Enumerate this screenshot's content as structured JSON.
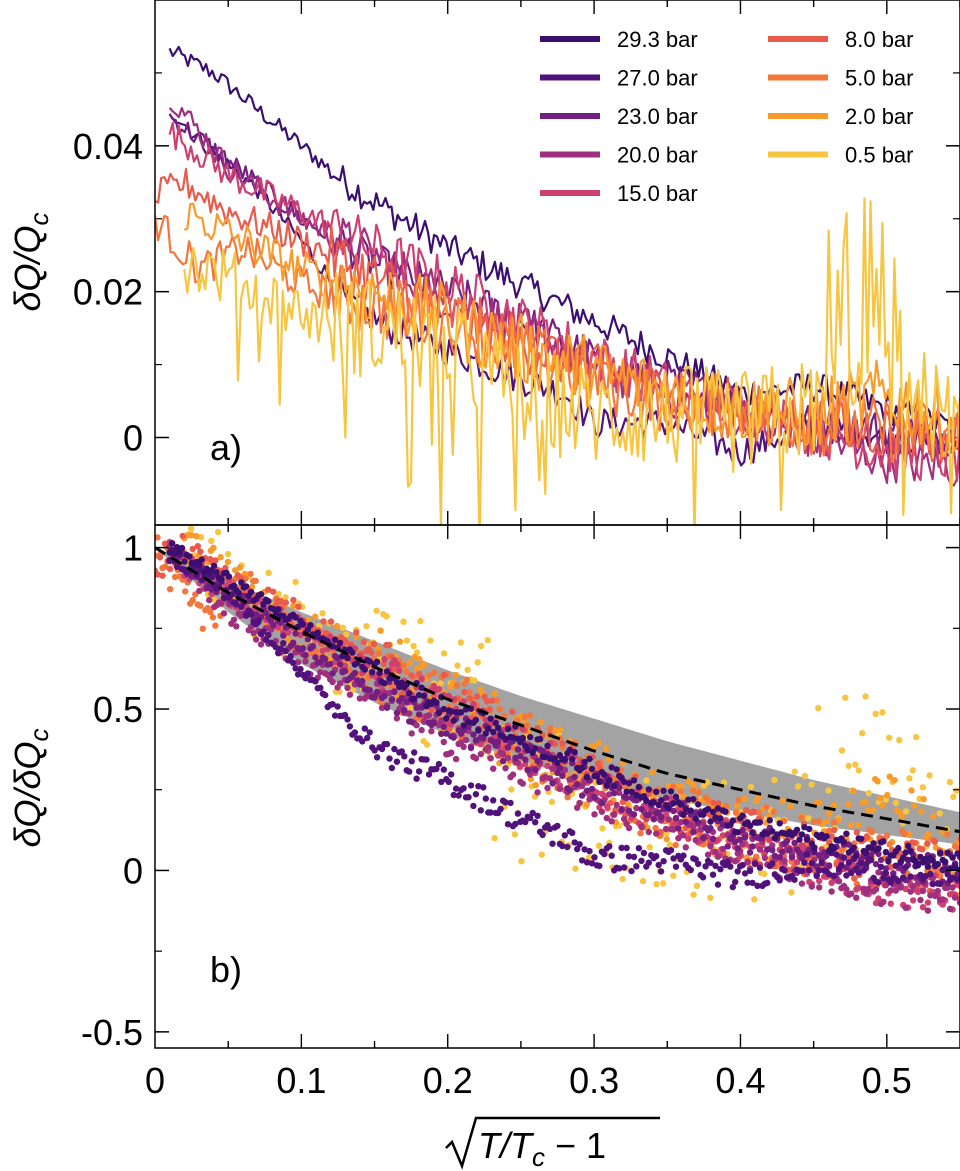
{
  "chart_data": [
    {
      "panel": "a)",
      "type": "line",
      "ylabel_parts": {
        "base": "δQ/Q",
        "sub": "c"
      },
      "xlim": [
        0,
        0.55
      ],
      "ylim": [
        -0.012,
        0.06
      ],
      "yticks": [
        0,
        0.02,
        0.04
      ],
      "ytick_labels": [
        "0",
        "0.02",
        "0.04"
      ],
      "legend_position": "top-right",
      "series": [
        {
          "name": "29.3 bar",
          "color": "#3b0f70",
          "x": [
            0.01,
            0.04,
            0.07,
            0.1,
            0.13,
            0.16,
            0.2,
            0.25,
            0.3,
            0.35,
            0.4,
            0.45,
            0.5,
            0.55
          ],
          "y": [
            0.053,
            0.05,
            0.045,
            0.04,
            0.035,
            0.031,
            0.026,
            0.021,
            0.016,
            0.011,
            0.006,
            0.007,
            0.004,
            0.001
          ],
          "noise": 0.0012
        },
        {
          "name": "27.0 bar",
          "color": "#51127c",
          "x": [
            0.01,
            0.04,
            0.07,
            0.1,
            0.13,
            0.16,
            0.2,
            0.25,
            0.28,
            0.3,
            0.35,
            0.4,
            0.45,
            0.5,
            0.55
          ],
          "y": [
            0.045,
            0.039,
            0.034,
            0.027,
            0.019,
            0.015,
            0.012,
            0.008,
            0.006,
            0.002,
            0.002,
            -0.002,
            0.002,
            0.0,
            -0.001
          ],
          "noise": 0.0012
        },
        {
          "name": "23.0 bar",
          "color": "#721f81",
          "x": [
            0.01,
            0.05,
            0.1,
            0.15,
            0.2,
            0.25,
            0.3,
            0.35,
            0.4,
            0.45,
            0.5,
            0.55
          ],
          "y": [
            0.044,
            0.038,
            0.03,
            0.024,
            0.02,
            0.016,
            0.011,
            0.008,
            0.005,
            0.002,
            0.001,
            0.0
          ],
          "noise": 0.0015
        },
        {
          "name": "20.0 bar",
          "color": "#9f2f7f",
          "x": [
            0.01,
            0.05,
            0.1,
            0.15,
            0.2,
            0.25,
            0.3,
            0.35,
            0.4,
            0.45,
            0.5,
            0.55
          ],
          "y": [
            0.047,
            0.037,
            0.03,
            0.025,
            0.019,
            0.015,
            0.01,
            0.006,
            0.003,
            0.0,
            -0.003,
            -0.004
          ],
          "noise": 0.0018
        },
        {
          "name": "15.0 bar",
          "color": "#cd4071",
          "x": [
            0.01,
            0.05,
            0.1,
            0.15,
            0.2,
            0.25,
            0.3,
            0.35,
            0.4,
            0.45,
            0.5,
            0.55
          ],
          "y": [
            0.042,
            0.036,
            0.031,
            0.026,
            0.021,
            0.016,
            0.011,
            0.007,
            0.004,
            0.001,
            -0.002,
            -0.003
          ],
          "noise": 0.002
        },
        {
          "name": "8.0 bar",
          "color": "#e85b4d",
          "x": [
            0.0,
            0.02,
            0.05,
            0.1,
            0.15,
            0.2,
            0.25,
            0.3,
            0.35,
            0.4,
            0.45,
            0.5,
            0.55
          ],
          "y": [
            0.033,
            0.035,
            0.031,
            0.027,
            0.022,
            0.017,
            0.013,
            0.009,
            0.006,
            0.004,
            0.002,
            0.001,
            0.0
          ],
          "noise": 0.0022
        },
        {
          "name": "5.0 bar",
          "color": "#f3763c",
          "x": [
            0.0,
            0.03,
            0.06,
            0.1,
            0.15,
            0.2,
            0.25,
            0.3,
            0.35,
            0.4,
            0.45,
            0.5,
            0.55
          ],
          "y": [
            0.03,
            0.023,
            0.026,
            0.021,
            0.018,
            0.016,
            0.012,
            0.008,
            0.005,
            0.004,
            0.002,
            0.001,
            0.001
          ],
          "noise": 0.0025
        },
        {
          "name": "2.0 bar",
          "color": "#f89b2a",
          "x": [
            0.02,
            0.05,
            0.1,
            0.15,
            0.2,
            0.25,
            0.3,
            0.35,
            0.4,
            0.45,
            0.5,
            0.55
          ],
          "y": [
            0.031,
            0.028,
            0.023,
            0.02,
            0.016,
            0.012,
            0.009,
            0.006,
            0.004,
            0.003,
            0.006,
            0.001
          ],
          "noise": 0.0028
        },
        {
          "name": "0.5 bar",
          "color": "#f6c643",
          "x": [
            0.02,
            0.05,
            0.1,
            0.15,
            0.2,
            0.25,
            0.3,
            0.35,
            0.4,
            0.45,
            0.48,
            0.5,
            0.55
          ],
          "y": [
            0.024,
            0.022,
            0.017,
            0.015,
            0.012,
            0.006,
            0.003,
            0.003,
            0.002,
            0.004,
            0.011,
            0.008,
            0.002
          ],
          "noise": 0.004
        }
      ]
    },
    {
      "panel": "b)",
      "type": "scatter",
      "ylabel_parts": {
        "base": "δQ/δQ",
        "sub": "c"
      },
      "xlabel": "√(T/Tc − 1)",
      "xlabel_parts": {
        "base": "T/T",
        "sub": "c",
        "tail": " − 1"
      },
      "xlim": [
        0,
        0.55
      ],
      "ylim": [
        -0.55,
        1.07
      ],
      "xticks": [
        0,
        0.1,
        0.2,
        0.3,
        0.4,
        0.5
      ],
      "xtick_labels": [
        "0",
        "0.1",
        "0.2",
        "0.3",
        "0.4",
        "0.5"
      ],
      "yticks": [
        -0.5,
        0,
        0.5,
        1
      ],
      "ytick_labels": [
        "-0.5",
        "0",
        "0.5",
        "1"
      ],
      "fit_curve": {
        "style": "dashed",
        "color": "#000000",
        "x": [
          0,
          0.05,
          0.1,
          0.15,
          0.2,
          0.25,
          0.3,
          0.35,
          0.4,
          0.45,
          0.5,
          0.55
        ],
        "y": [
          1.0,
          0.86,
          0.74,
          0.63,
          0.53,
          0.45,
          0.37,
          0.3,
          0.25,
          0.2,
          0.16,
          0.12
        ]
      },
      "confidence_band": {
        "color": "#9e9e9e",
        "x": [
          0,
          0.05,
          0.1,
          0.15,
          0.2,
          0.25,
          0.3,
          0.35,
          0.4,
          0.45,
          0.5,
          0.55
        ],
        "upper": [
          1.0,
          0.9,
          0.8,
          0.71,
          0.62,
          0.54,
          0.47,
          0.4,
          0.34,
          0.28,
          0.23,
          0.18
        ],
        "lower": [
          1.0,
          0.8,
          0.64,
          0.52,
          0.42,
          0.34,
          0.27,
          0.22,
          0.18,
          0.14,
          0.11,
          0.08
        ]
      },
      "series": [
        {
          "name": "29.3 bar",
          "color": "#3b0f70",
          "x": [
            0.01,
            0.05,
            0.1,
            0.15,
            0.2,
            0.25,
            0.3,
            0.35,
            0.4,
            0.45,
            0.5,
            0.55
          ],
          "y": [
            1.0,
            0.9,
            0.76,
            0.62,
            0.5,
            0.41,
            0.31,
            0.22,
            0.14,
            0.1,
            0.06,
            0.03
          ],
          "noise": 0.02
        },
        {
          "name": "27.0 bar",
          "color": "#51127c",
          "x": [
            0.01,
            0.05,
            0.1,
            0.13,
            0.16,
            0.2,
            0.25,
            0.28,
            0.3,
            0.35,
            0.4,
            0.45,
            0.5,
            0.55
          ],
          "y": [
            0.98,
            0.86,
            0.62,
            0.46,
            0.36,
            0.28,
            0.16,
            0.1,
            0.04,
            0.03,
            -0.02,
            0.02,
            0.0,
            -0.02
          ],
          "noise": 0.025
        },
        {
          "name": "23.0 bar",
          "color": "#721f81",
          "x": [
            0.01,
            0.05,
            0.1,
            0.15,
            0.2,
            0.25,
            0.3,
            0.35,
            0.4,
            0.45,
            0.5,
            0.55
          ],
          "y": [
            0.98,
            0.86,
            0.7,
            0.56,
            0.45,
            0.36,
            0.26,
            0.18,
            0.11,
            0.05,
            0.02,
            0.0
          ],
          "noise": 0.03
        },
        {
          "name": "20.0 bar",
          "color": "#9f2f7f",
          "x": [
            0.01,
            0.05,
            0.1,
            0.15,
            0.2,
            0.25,
            0.3,
            0.35,
            0.4,
            0.45,
            0.5,
            0.55
          ],
          "y": [
            1.0,
            0.8,
            0.65,
            0.54,
            0.41,
            0.32,
            0.22,
            0.14,
            0.07,
            0.0,
            -0.06,
            -0.08
          ],
          "noise": 0.035
        },
        {
          "name": "15.0 bar",
          "color": "#cd4071",
          "x": [
            0.01,
            0.05,
            0.1,
            0.15,
            0.2,
            0.25,
            0.3,
            0.35,
            0.4,
            0.45,
            0.5,
            0.55
          ],
          "y": [
            0.98,
            0.86,
            0.74,
            0.62,
            0.5,
            0.38,
            0.26,
            0.17,
            0.09,
            0.02,
            -0.05,
            -0.07
          ],
          "noise": 0.04
        },
        {
          "name": "8.0 bar",
          "color": "#e85b4d",
          "x": [
            0.0,
            0.02,
            0.05,
            0.1,
            0.15,
            0.2,
            0.25,
            0.3,
            0.35,
            0.4,
            0.45,
            0.5,
            0.55
          ],
          "y": [
            0.95,
            1.0,
            0.9,
            0.78,
            0.66,
            0.52,
            0.4,
            0.27,
            0.18,
            0.12,
            0.06,
            0.03,
            0.0
          ],
          "noise": 0.05
        },
        {
          "name": "5.0 bar",
          "color": "#f3763c",
          "x": [
            0.0,
            0.03,
            0.06,
            0.1,
            0.15,
            0.2,
            0.25,
            0.3,
            0.35,
            0.4,
            0.45,
            0.5,
            0.55
          ],
          "y": [
            1.0,
            0.78,
            0.88,
            0.72,
            0.6,
            0.53,
            0.4,
            0.27,
            0.17,
            0.13,
            0.07,
            0.03,
            0.03
          ],
          "noise": 0.06
        },
        {
          "name": "2.0 bar",
          "color": "#f89b2a",
          "x": [
            0.02,
            0.05,
            0.1,
            0.15,
            0.2,
            0.25,
            0.3,
            0.35,
            0.4,
            0.45,
            0.5,
            0.55
          ],
          "y": [
            1.0,
            0.9,
            0.74,
            0.65,
            0.52,
            0.39,
            0.29,
            0.19,
            0.13,
            0.1,
            0.19,
            0.03
          ],
          "noise": 0.07
        },
        {
          "name": "0.5 bar",
          "color": "#f6c643",
          "x": [
            0.02,
            0.05,
            0.1,
            0.15,
            0.2,
            0.22,
            0.25,
            0.3,
            0.35,
            0.4,
            0.45,
            0.48,
            0.5,
            0.55
          ],
          "y": [
            1.0,
            0.92,
            0.71,
            0.63,
            0.5,
            0.62,
            0.25,
            0.13,
            0.13,
            0.08,
            0.17,
            0.46,
            0.33,
            0.08
          ],
          "noise": 0.12
        }
      ]
    }
  ]
}
